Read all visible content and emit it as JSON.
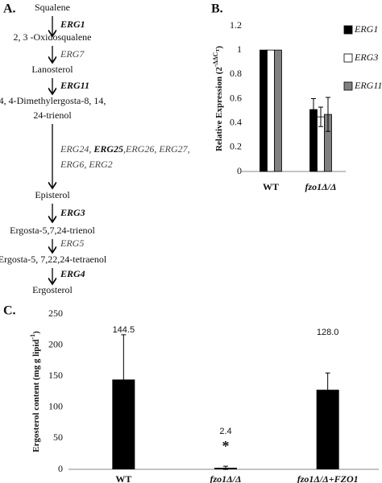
{
  "pathway": {
    "label": "A.",
    "compounds": [
      [
        "Squalene"
      ],
      [
        "2, 3 -Oxidosqualene"
      ],
      [
        "Lanosterol"
      ],
      [
        "4, 4-Dimethylergosta-8, 14,",
        "24-trienol"
      ],
      [
        "Episterol"
      ],
      [
        "Ergosta-5,7,24-trienol"
      ],
      [
        "Ergosta-5, 7,22,24-tetraenol"
      ],
      [
        "Ergosterol"
      ]
    ],
    "enzymes": [
      [
        [
          {
            "text": "ERG1",
            "bold": true
          }
        ]
      ],
      [
        [
          {
            "text": "ERG7",
            "bold": false
          }
        ]
      ],
      [
        [
          {
            "text": "ERG11",
            "bold": true
          }
        ]
      ],
      [
        [
          {
            "text": "ERG24, ",
            "bold": false
          },
          {
            "text": "ERG25",
            "bold": true
          },
          {
            "text": ",ERG26, ERG27,",
            "bold": false
          }
        ],
        [
          {
            "text": "ERG6, ERG2",
            "bold": false
          }
        ]
      ],
      [
        [
          {
            "text": "ERG3",
            "bold": true
          }
        ]
      ],
      [
        [
          {
            "text": "ERG5",
            "bold": false
          }
        ]
      ],
      [
        [
          {
            "text": "ERG4",
            "bold": true
          }
        ]
      ]
    ]
  },
  "chart_data": [
    {
      "type": "bar",
      "label": "B.",
      "ylabel": "Relative Expression (2",
      "ylabel_sup": "-ΔΔC",
      "ylabel_sub": "T",
      "ylabel_end": ")",
      "categories": [
        "WT",
        "fzo1Δ/Δ"
      ],
      "series": [
        {
          "name": "ERG1",
          "color": "#000000",
          "values": [
            1,
            0.51
          ],
          "errors": [
            null,
            0.09
          ]
        },
        {
          "name": "ERG3",
          "color": "#ffffff",
          "values": [
            1,
            0.45
          ],
          "errors": [
            null,
            0.08
          ]
        },
        {
          "name": "ERG11",
          "color": "#808080",
          "values": [
            1,
            0.47
          ],
          "errors": [
            null,
            0.14
          ]
        }
      ],
      "ylim": [
        0,
        1.2
      ],
      "yticks": [
        0,
        0.2,
        0.4,
        0.6,
        0.8,
        1,
        1.2
      ],
      "legend": "right",
      "grid": false
    },
    {
      "type": "bar",
      "label": "C.",
      "ylabel": "Ergosterol content (mg g lipid",
      "ylabel_sup": "-1",
      "ylabel_end": ")",
      "categories": [
        "WT",
        "fzo1Δ/Δ",
        "fzo1Δ/Δ+FZO1"
      ],
      "values": [
        144.5,
        2.4,
        128.0
      ],
      "value_labels": [
        "144.5",
        "2.4",
        "128.0"
      ],
      "errors": [
        72,
        2.6,
        27
      ],
      "color": "#000000",
      "annotation": "*",
      "ylim": [
        0,
        250
      ],
      "yticks": [
        0,
        50,
        100,
        150,
        200,
        250
      ],
      "grid": false
    }
  ]
}
